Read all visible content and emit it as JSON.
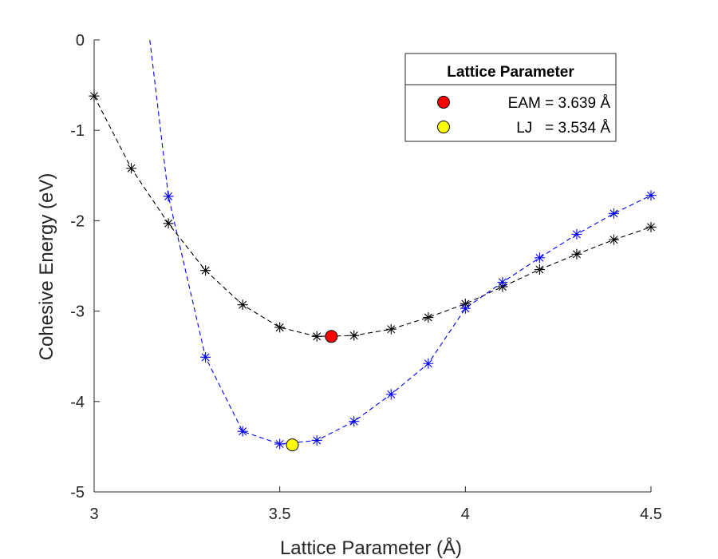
{
  "chart_data": {
    "type": "line",
    "xlabel": "Lattice Parameter (Å)",
    "ylabel": "Cohesive Energy (eV)",
    "xlim": [
      3,
      4.5
    ],
    "ylim": [
      -5,
      0
    ],
    "x_ticks": [
      3,
      3.5,
      4,
      4.5
    ],
    "x_tick_labels": [
      "3",
      "3.5",
      "4",
      "4.5"
    ],
    "y_ticks": [
      0,
      -1,
      -2,
      -3,
      -4,
      -5
    ],
    "y_tick_labels": [
      "0",
      "-1",
      "-2",
      "-3",
      "-4",
      "-5"
    ],
    "grid": false,
    "legend": {
      "title": "Lattice Parameter",
      "placement": "top-right",
      "entries": [
        {
          "label": "EAM = 3.639 Å",
          "marker": "circle",
          "color": "#ff0000"
        },
        {
          "label": "LJ   = 3.534 Å",
          "marker": "circle",
          "color": "#ffff00"
        }
      ]
    },
    "series": [
      {
        "color": "#000000",
        "line": "dashed",
        "marker": "asterisk",
        "x": [
          3.0,
          3.1,
          3.2,
          3.3,
          3.4,
          3.5,
          3.6,
          3.7,
          3.8,
          3.9,
          4.0,
          4.1,
          4.2,
          4.3,
          4.4,
          4.5
        ],
        "y": [
          -0.62,
          -1.42,
          -2.03,
          -2.55,
          -2.93,
          -3.18,
          -3.28,
          -3.27,
          -3.2,
          -3.07,
          -2.92,
          -2.73,
          -2.54,
          -2.37,
          -2.21,
          -2.07
        ]
      },
      {
        "color": "#0000ff",
        "line": "dashed",
        "marker": "asterisk",
        "line_start": {
          "x": 3.15,
          "y": 0.0
        },
        "x": [
          3.2,
          3.3,
          3.4,
          3.5,
          3.6,
          3.7,
          3.8,
          3.9,
          4.0,
          4.1,
          4.2,
          4.3,
          4.4,
          4.5
        ],
        "y": [
          -1.73,
          -3.51,
          -4.33,
          -4.47,
          -4.43,
          -4.22,
          -3.92,
          -3.58,
          -2.97,
          -2.68,
          -2.41,
          -2.15,
          -1.92,
          -1.72
        ]
      }
    ],
    "highlights": [
      {
        "x": 3.639,
        "y": -3.28,
        "color": "#ff0000"
      },
      {
        "x": 3.534,
        "y": -4.48,
        "color": "#ffff00"
      }
    ]
  }
}
